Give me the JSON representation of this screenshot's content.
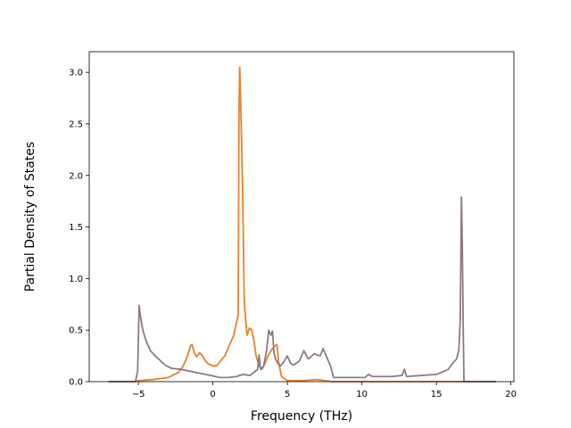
{
  "chart_data": {
    "type": "line",
    "xlabel": "Frequency (THz)",
    "ylabel": "Partial Density of States",
    "xlim": [
      -8.3,
      20.2
    ],
    "ylim": [
      0,
      3.2
    ],
    "xticks": [
      -5,
      0,
      5,
      10,
      15,
      20
    ],
    "yticks": [
      0.0,
      0.5,
      1.0,
      1.5,
      2.0,
      2.5,
      3.0
    ],
    "xtick_labels": [
      "−5",
      "0",
      "5",
      "10",
      "15",
      "20"
    ],
    "ytick_labels": [
      "0.0",
      "0.5",
      "1.0",
      "1.5",
      "2.0",
      "2.5",
      "3.0"
    ],
    "grid": false,
    "series": [
      {
        "color": "#e6812a",
        "x": [
          -7.0,
          -5.2,
          -5.0,
          -4.0,
          -3.0,
          -2.3,
          -2.0,
          -1.7,
          -1.5,
          -1.4,
          -1.25,
          -1.1,
          -0.9,
          -0.7,
          -0.5,
          -0.3,
          -0.1,
          0.1,
          0.3,
          0.5,
          0.8,
          1.1,
          1.4,
          1.55,
          1.7,
          1.75,
          1.8,
          1.9,
          2.0,
          2.1,
          2.2,
          2.3,
          2.45,
          2.6,
          2.75,
          2.9,
          3.1,
          3.3,
          3.5,
          3.7,
          3.9,
          4.1,
          4.3,
          4.4,
          4.6,
          5.0,
          6.0,
          7.0,
          8.0,
          10.0,
          14.0,
          16.5,
          17.0,
          19.0
        ],
        "y": [
          0.0,
          0.0,
          0.01,
          0.02,
          0.04,
          0.09,
          0.15,
          0.25,
          0.35,
          0.36,
          0.28,
          0.24,
          0.28,
          0.25,
          0.2,
          0.17,
          0.16,
          0.15,
          0.16,
          0.2,
          0.25,
          0.35,
          0.45,
          0.55,
          0.65,
          2.6,
          3.05,
          2.5,
          1.8,
          0.8,
          0.6,
          0.45,
          0.52,
          0.5,
          0.4,
          0.25,
          0.15,
          0.12,
          0.18,
          0.25,
          0.3,
          0.34,
          0.36,
          0.2,
          0.05,
          0.01,
          0.01,
          0.02,
          0.0,
          0.0,
          0.0,
          0.0,
          0.0,
          0.0
        ]
      },
      {
        "color": "#8c7a84",
        "x": [
          -7.0,
          -5.2,
          -5.05,
          -4.95,
          -4.85,
          -4.7,
          -4.5,
          -4.2,
          -3.8,
          -3.2,
          -2.8,
          -2.2,
          -1.5,
          -0.5,
          0.5,
          1.0,
          1.6,
          2.0,
          2.5,
          3.0,
          3.1,
          3.2,
          3.4,
          3.6,
          3.75,
          3.9,
          4.0,
          4.1,
          4.2,
          4.35,
          4.5,
          4.7,
          5.0,
          5.2,
          5.4,
          5.8,
          6.1,
          6.4,
          6.8,
          7.2,
          7.4,
          7.6,
          7.9,
          8.1,
          9.0,
          10.2,
          10.45,
          10.7,
          12.0,
          12.7,
          12.85,
          13.0,
          14.0,
          15.0,
          15.5,
          15.8,
          16.1,
          16.35,
          16.5,
          16.6,
          16.68,
          16.74,
          16.8,
          16.85,
          16.95,
          19.0
        ],
        "y": [
          0.0,
          0.0,
          0.1,
          0.74,
          0.62,
          0.5,
          0.4,
          0.3,
          0.24,
          0.16,
          0.13,
          0.12,
          0.1,
          0.07,
          0.04,
          0.04,
          0.05,
          0.07,
          0.06,
          0.12,
          0.26,
          0.12,
          0.15,
          0.3,
          0.5,
          0.45,
          0.49,
          0.28,
          0.22,
          0.18,
          0.15,
          0.18,
          0.25,
          0.18,
          0.16,
          0.2,
          0.3,
          0.22,
          0.27,
          0.25,
          0.32,
          0.25,
          0.15,
          0.04,
          0.04,
          0.04,
          0.07,
          0.05,
          0.05,
          0.06,
          0.12,
          0.05,
          0.06,
          0.07,
          0.1,
          0.12,
          0.18,
          0.22,
          0.3,
          0.6,
          1.79,
          1.3,
          0.5,
          0.0,
          0.0,
          0.0
        ]
      }
    ]
  }
}
